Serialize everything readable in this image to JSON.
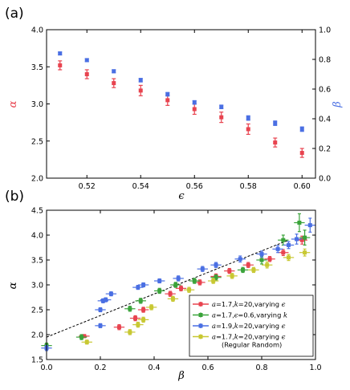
{
  "chart_data": [
    {
      "panel_label": "(a)",
      "type": "scatter",
      "xlabel": "ϵ",
      "ylabel_left": "α",
      "ylabel_right": "β",
      "xlim": [
        0.505,
        0.605
      ],
      "ylim_left": [
        2.0,
        4.0
      ],
      "ylim_right": [
        0.0,
        1.0
      ],
      "xticks": [
        "0.52",
        "0.54",
        "0.56",
        "0.58",
        "0.60"
      ],
      "xtick_values": [
        0.52,
        0.54,
        0.56,
        0.58,
        0.6
      ],
      "yticks_left": [
        "2.0",
        "2.5",
        "3.0",
        "3.5",
        "4.0"
      ],
      "ytick_values_left": [
        2.0,
        2.5,
        3.0,
        3.5,
        4.0
      ],
      "yticks_right": [
        "0.0",
        "0.2",
        "0.4",
        "0.6",
        "0.8",
        "1.0"
      ],
      "ytick_values_right": [
        0.0,
        0.2,
        0.4,
        0.6,
        0.8,
        1.0
      ],
      "grid": false,
      "series": [
        {
          "axis": "left",
          "color": "#e8434f",
          "x": [
            0.51,
            0.52,
            0.53,
            0.54,
            0.55,
            0.56,
            0.57,
            0.58,
            0.59,
            0.6
          ],
          "y": [
            3.52,
            3.4,
            3.28,
            3.18,
            3.05,
            2.93,
            2.82,
            2.66,
            2.48,
            2.34
          ],
          "yerr": [
            0.06,
            0.06,
            0.06,
            0.07,
            0.07,
            0.07,
            0.07,
            0.07,
            0.06,
            0.06
          ]
        },
        {
          "axis": "right",
          "color": "#4a6fe3",
          "x": [
            0.51,
            0.52,
            0.53,
            0.54,
            0.55,
            0.56,
            0.57,
            0.58,
            0.59,
            0.6
          ],
          "y": [
            0.84,
            0.795,
            0.72,
            0.66,
            0.565,
            0.51,
            0.48,
            0.405,
            0.37,
            0.33
          ],
          "yerr": [
            0.01,
            0.01,
            0.01,
            0.012,
            0.012,
            0.012,
            0.012,
            0.015,
            0.015,
            0.015
          ]
        }
      ]
    },
    {
      "panel_label": "(b)",
      "type": "scatter",
      "xlabel": "β",
      "ylabel": "α",
      "xlim": [
        0.0,
        1.0
      ],
      "ylim": [
        1.5,
        4.5
      ],
      "xticks": [
        "0.0",
        "0.2",
        "0.4",
        "0.6",
        "0.8",
        "1.0"
      ],
      "xtick_values": [
        0.0,
        0.2,
        0.4,
        0.6,
        0.8,
        1.0
      ],
      "yticks": [
        "1.5",
        "2.0",
        "2.5",
        "3.0",
        "3.5",
        "4.0",
        "4.5"
      ],
      "ytick_values": [
        1.5,
        2.0,
        2.5,
        3.0,
        3.5,
        4.0,
        4.5
      ],
      "grid": false,
      "legend_position": "lower-right",
      "reference_line": {
        "style": "dashed",
        "color": "#000000",
        "x": [
          0.0,
          0.9
        ],
        "y": [
          1.95,
          3.9
        ]
      },
      "series": [
        {
          "name": "a=1.7,k=20,varying ϵ",
          "legend_parts": [
            [
              "a",
              "i"
            ],
            [
              "=1.7,",
              "n"
            ],
            [
              "k",
              "i"
            ],
            [
              "=20,varying ",
              "n"
            ],
            [
              "ϵ",
              "i"
            ]
          ],
          "color": "#e8434f",
          "x": [
            0.14,
            0.27,
            0.33,
            0.36,
            0.46,
            0.5,
            0.57,
            0.63,
            0.68,
            0.75,
            0.83,
            0.88,
            0.95
          ],
          "y": [
            1.97,
            2.15,
            2.33,
            2.5,
            2.82,
            2.93,
            3.05,
            3.17,
            3.28,
            3.4,
            3.52,
            3.65,
            3.9
          ],
          "xerr": [
            0.02,
            0.02,
            0.02,
            0.02,
            0.02,
            0.02,
            0.02,
            0.02,
            0.02,
            0.02,
            0.02,
            0.02,
            0.02
          ],
          "yerr": [
            0.03,
            0.05,
            0.05,
            0.05,
            0.05,
            0.05,
            0.05,
            0.05,
            0.05,
            0.05,
            0.05,
            0.06,
            0.08
          ]
        },
        {
          "name": "a=1.7,ϵ=0.6,varying k",
          "legend_parts": [
            [
              "a",
              "i"
            ],
            [
              "=1.7,",
              "n"
            ],
            [
              "ϵ",
              "i"
            ],
            [
              "=0.6,varying ",
              "n"
            ],
            [
              "k",
              "i"
            ]
          ],
          "color": "#3aa33a",
          "x": [
            0.0,
            0.13,
            0.31,
            0.35,
            0.42,
            0.48,
            0.55,
            0.63,
            0.73,
            0.8,
            0.88,
            0.94,
            0.96
          ],
          "y": [
            1.78,
            1.95,
            2.52,
            2.68,
            2.88,
            3.0,
            3.08,
            3.15,
            3.3,
            3.5,
            3.9,
            4.25,
            3.95
          ],
          "xerr": [
            0.02,
            0.02,
            0.02,
            0.02,
            0.02,
            0.02,
            0.02,
            0.02,
            0.02,
            0.02,
            0.02,
            0.02,
            0.02
          ],
          "yerr": [
            0.05,
            0.05,
            0.05,
            0.05,
            0.05,
            0.05,
            0.05,
            0.05,
            0.05,
            0.08,
            0.1,
            0.18,
            0.15
          ]
        },
        {
          "name": "a=1.9,k=20,varying ϵ",
          "legend_parts": [
            [
              "a",
              "i"
            ],
            [
              "=1.9,",
              "n"
            ],
            [
              "k",
              "i"
            ],
            [
              "=20,varying ",
              "n"
            ],
            [
              "ϵ",
              "i"
            ]
          ],
          "color": "#4a6fe3",
          "x": [
            0.0,
            0.2,
            0.2,
            0.21,
            0.22,
            0.24,
            0.34,
            0.36,
            0.42,
            0.49,
            0.58,
            0.63,
            0.72,
            0.8,
            0.86,
            0.9,
            0.93,
            0.98
          ],
          "y": [
            1.73,
            2.18,
            2.5,
            2.68,
            2.7,
            2.82,
            2.95,
            3.0,
            3.08,
            3.13,
            3.32,
            3.4,
            3.52,
            3.62,
            3.72,
            3.8,
            3.92,
            4.2
          ],
          "xerr": [
            0.02,
            0.02,
            0.02,
            0.02,
            0.02,
            0.02,
            0.02,
            0.02,
            0.02,
            0.02,
            0.02,
            0.02,
            0.02,
            0.02,
            0.02,
            0.02,
            0.02,
            0.02
          ],
          "yerr": [
            0.05,
            0.04,
            0.04,
            0.04,
            0.04,
            0.04,
            0.04,
            0.04,
            0.04,
            0.05,
            0.05,
            0.05,
            0.06,
            0.06,
            0.07,
            0.07,
            0.1,
            0.14
          ]
        },
        {
          "name": "a=1.7,k=20,varying ϵ (Regular Random)",
          "legend_parts": [
            [
              "a",
              "i"
            ],
            [
              "=1.7,",
              "n"
            ],
            [
              "k",
              "i"
            ],
            [
              "=20,varying ",
              "n"
            ],
            [
              "ϵ",
              "i"
            ]
          ],
          "legend_line2": "(Regular Random)",
          "color": "#c8c832",
          "x": [
            0.15,
            0.31,
            0.34,
            0.36,
            0.39,
            0.47,
            0.53,
            0.62,
            0.69,
            0.77,
            0.82,
            0.9,
            0.96
          ],
          "y": [
            1.85,
            2.05,
            2.2,
            2.3,
            2.55,
            2.72,
            2.9,
            3.08,
            3.18,
            3.3,
            3.4,
            3.55,
            3.65
          ],
          "xerr": [
            0.02,
            0.02,
            0.02,
            0.02,
            0.02,
            0.02,
            0.02,
            0.02,
            0.02,
            0.02,
            0.02,
            0.02,
            0.02
          ],
          "yerr": [
            0.04,
            0.05,
            0.05,
            0.05,
            0.05,
            0.05,
            0.05,
            0.05,
            0.05,
            0.05,
            0.06,
            0.06,
            0.07
          ]
        }
      ]
    }
  ]
}
